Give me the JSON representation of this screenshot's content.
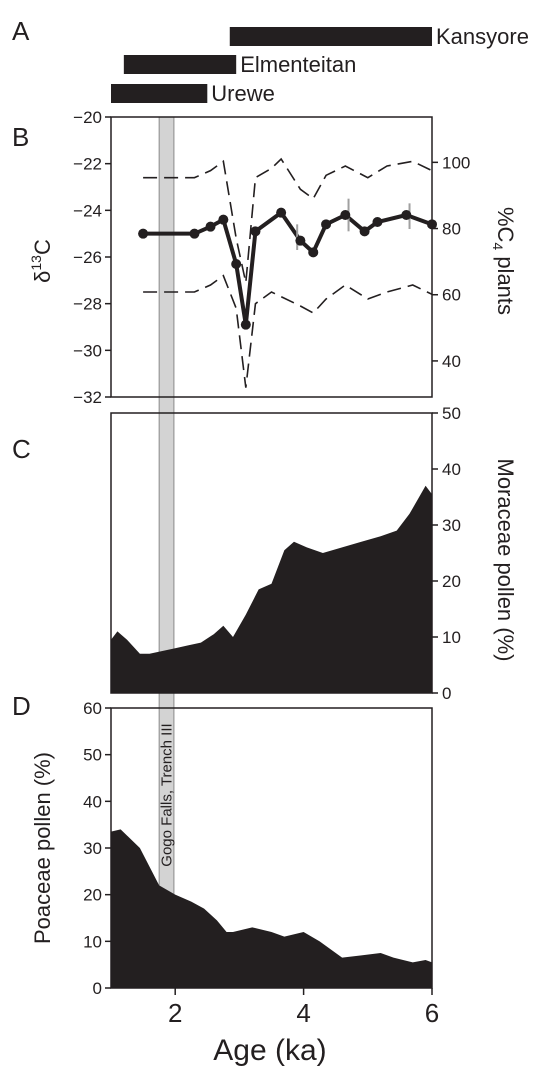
{
  "panel_labels": {
    "a": "A",
    "b": "B",
    "c": "C",
    "d": "D"
  },
  "colors": {
    "ink": "#231f20",
    "band": "#d3d3d3",
    "error_bar": "#a0a0a0"
  },
  "highlight_band": {
    "label": "Gogo Falls, Trench III",
    "x_range": [
      1.75,
      1.98
    ]
  },
  "chart_data": [
    {
      "type": "bar",
      "panel": "A",
      "orientation": "horizontal-range",
      "x_axis": "Age (ka)",
      "periods": [
        {
          "name": "Kansyore",
          "start": 2.85,
          "end": 6.0
        },
        {
          "name": "Elmenteitan",
          "start": 1.2,
          "end": 2.95
        },
        {
          "name": "Urewe",
          "start": 1.0,
          "end": 2.5
        }
      ]
    },
    {
      "type": "line",
      "panel": "B",
      "xlim": [
        1,
        6
      ],
      "ylim": [
        -32,
        -20
      ],
      "ylabel": "δ13C",
      "yticks": [
        -20,
        -22,
        -24,
        -26,
        -28,
        -30,
        -32
      ],
      "ylim_right": [
        29.1,
        113.7
      ],
      "ylabel_right": "%C4 plants",
      "yticks_right": [
        100,
        80,
        60,
        40
      ],
      "series": [
        {
          "role": "mean",
          "markers": true,
          "x": [
            1.5,
            2.3,
            2.55,
            2.75,
            2.95,
            3.1,
            3.25,
            3.65,
            3.95,
            4.15,
            4.35,
            4.65,
            4.95,
            5.15,
            5.6,
            6.0
          ],
          "y": [
            -25.0,
            -25.0,
            -24.7,
            -24.4,
            -26.3,
            -28.9,
            -24.9,
            -24.1,
            -25.3,
            -25.8,
            -24.6,
            -24.2,
            -24.9,
            -24.5,
            -24.2,
            -24.6
          ]
        },
        {
          "role": "upper bound",
          "dashed": true,
          "x": [
            1.5,
            2.3,
            2.55,
            2.75,
            2.95,
            3.1,
            3.25,
            3.5,
            3.65,
            3.95,
            4.15,
            4.35,
            4.65,
            5.0,
            5.3,
            5.7,
            6.0
          ],
          "y": [
            -22.6,
            -22.6,
            -22.3,
            -21.9,
            -25.2,
            -27.1,
            -22.6,
            -22.2,
            -21.8,
            -23.1,
            -23.5,
            -22.5,
            -22.1,
            -22.6,
            -22.1,
            -21.9,
            -22.3
          ]
        },
        {
          "role": "lower bound",
          "dashed": true,
          "x": [
            1.5,
            2.3,
            2.55,
            2.75,
            2.95,
            3.1,
            3.25,
            3.5,
            3.95,
            4.15,
            4.35,
            4.65,
            5.0,
            5.3,
            5.7,
            6.0
          ],
          "y": [
            -27.5,
            -27.5,
            -27.2,
            -26.8,
            -28.2,
            -31.6,
            -28.0,
            -27.5,
            -28.1,
            -28.4,
            -27.8,
            -27.2,
            -27.8,
            -27.5,
            -27.2,
            -27.6
          ]
        }
      ],
      "error_bars": [
        {
          "x": 3.9,
          "y_low": -25.7,
          "y_high": -24.6
        },
        {
          "x": 4.7,
          "y_low": -24.9,
          "y_high": -23.5
        },
        {
          "x": 5.65,
          "y_low": -24.8,
          "y_high": -23.7
        }
      ]
    },
    {
      "type": "area",
      "panel": "C",
      "xlim": [
        1,
        6
      ],
      "ylim": [
        0,
        50
      ],
      "ylabel": "Moraceae pollen (%)",
      "yticks": [
        50,
        40,
        30,
        20,
        10,
        0
      ],
      "x": [
        1.0,
        1.1,
        1.25,
        1.45,
        1.6,
        1.8,
        2.0,
        2.2,
        2.4,
        2.6,
        2.75,
        2.9,
        3.1,
        3.3,
        3.5,
        3.7,
        3.85,
        4.05,
        4.3,
        4.6,
        4.9,
        5.2,
        5.45,
        5.65,
        5.8,
        5.9,
        6.0
      ],
      "y": [
        9.5,
        11,
        9.5,
        7,
        7,
        7.5,
        8,
        8.5,
        9,
        10.5,
        12,
        10,
        14,
        18.5,
        19.5,
        25.5,
        27,
        26,
        25,
        26,
        27,
        28,
        29,
        32,
        35,
        37,
        35.5
      ]
    },
    {
      "type": "area",
      "panel": "D",
      "xlim": [
        1,
        6
      ],
      "ylim": [
        0,
        60
      ],
      "ylabel": "Poaceae pollen (%)",
      "xlabel": "Age (ka)",
      "yticks": [
        0,
        10,
        20,
        30,
        40,
        50,
        60
      ],
      "xticks": [
        2,
        4,
        6
      ],
      "x": [
        1.0,
        1.15,
        1.45,
        1.75,
        2.0,
        2.25,
        2.45,
        2.65,
        2.8,
        2.9,
        3.2,
        3.5,
        3.7,
        4.0,
        4.25,
        4.6,
        4.9,
        5.2,
        5.4,
        5.7,
        5.9,
        6.0
      ],
      "y": [
        33.5,
        34,
        30,
        22,
        20,
        18.5,
        17,
        14.5,
        12,
        12,
        13,
        12,
        11,
        12,
        10,
        6.5,
        7,
        7.5,
        6.5,
        5.5,
        6,
        5.5
      ]
    }
  ],
  "axis_text": {
    "b_left": "δ",
    "b_left_sup": "13",
    "b_left_tail": "C",
    "b_right_head": "%C",
    "b_right_sub": "4",
    "b_right_tail": " plants",
    "c_right": "Moraceae pollen (%)",
    "d_left": "Poaceae pollen (%)",
    "d_bottom": "Age (ka)"
  }
}
